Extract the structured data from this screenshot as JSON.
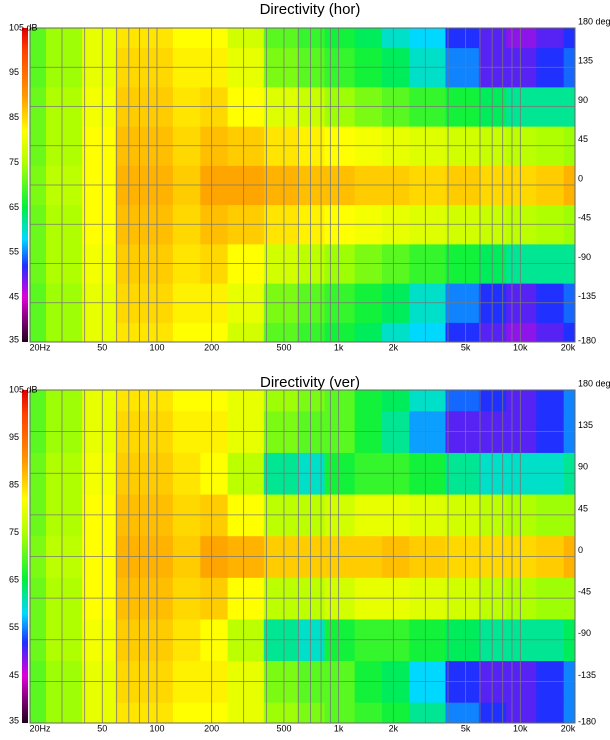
{
  "chart_data": [
    {
      "type": "heatmap",
      "title": "Directivity (hor)",
      "x": [
        20,
        30,
        50,
        70,
        100,
        150,
        200,
        300,
        500,
        700,
        1000,
        1500,
        2000,
        3000,
        5000,
        7000,
        10000,
        15000,
        20000
      ],
      "y": [
        -180,
        -135,
        -90,
        -45,
        0,
        45,
        90,
        135,
        180
      ],
      "z": [
        [
          70,
          74,
          80,
          84,
          84,
          82,
          82,
          78,
          70,
          68,
          66,
          64,
          60,
          58,
          52,
          50,
          48,
          50,
          52
        ],
        [
          70,
          74,
          80,
          85,
          85,
          83,
          83,
          80,
          72,
          70,
          68,
          66,
          64,
          60,
          55,
          52,
          50,
          52,
          54
        ],
        [
          71,
          75,
          81,
          86,
          86,
          84,
          85,
          82,
          78,
          76,
          74,
          72,
          70,
          68,
          66,
          64,
          62,
          62,
          62
        ],
        [
          71,
          75,
          82,
          87,
          87,
          85,
          87,
          86,
          84,
          83,
          82,
          81,
          80,
          79,
          78,
          77,
          76,
          75,
          74
        ],
        [
          72,
          76,
          82,
          88,
          88,
          86,
          89,
          89,
          88,
          87,
          87,
          86,
          86,
          85,
          86,
          85,
          85,
          86,
          88
        ],
        [
          71,
          75,
          82,
          87,
          87,
          85,
          87,
          86,
          84,
          83,
          82,
          81,
          80,
          79,
          78,
          77,
          76,
          75,
          74
        ],
        [
          71,
          75,
          81,
          86,
          86,
          84,
          85,
          82,
          79,
          77,
          74,
          72,
          70,
          68,
          66,
          64,
          62,
          62,
          62
        ],
        [
          70,
          74,
          80,
          85,
          85,
          83,
          83,
          80,
          72,
          70,
          68,
          66,
          64,
          60,
          55,
          50,
          50,
          52,
          54
        ],
        [
          70,
          74,
          80,
          84,
          84,
          82,
          82,
          78,
          70,
          68,
          66,
          64,
          60,
          58,
          52,
          50,
          48,
          50,
          52
        ]
      ],
      "xlim": [
        20,
        20000
      ],
      "log_x": true,
      "xticks": [
        {
          "value": 20,
          "label": "20Hz"
        },
        50,
        100,
        200,
        500,
        {
          "value": 1000,
          "label": "1k"
        },
        {
          "value": 2000,
          "label": "2k"
        },
        {
          "value": 5000,
          "label": "5k"
        },
        {
          "value": 10000,
          "label": "10k"
        },
        {
          "value": 20000,
          "label": "20k"
        }
      ],
      "xgrid": [
        30,
        40,
        60,
        70,
        80,
        90,
        300,
        400,
        600,
        700,
        800,
        900,
        3000,
        4000,
        6000,
        7000,
        8000,
        9000
      ],
      "ylim": [
        -180,
        180
      ],
      "yticks": [
        {
          "value": 180,
          "label": "180 deg"
        },
        135,
        90,
        45,
        0,
        -45,
        -90,
        -135,
        -180
      ],
      "clim": [
        35,
        105
      ],
      "cticks": [
        {
          "value": 105,
          "label": "105 dB"
        },
        95,
        85,
        75,
        65,
        55,
        45,
        35
      ],
      "colorscale": [
        [
          35,
          "#200018"
        ],
        [
          45,
          "#e000d8"
        ],
        [
          52,
          "#2030ff"
        ],
        [
          58,
          "#00d8ff"
        ],
        [
          65,
          "#00f040"
        ],
        [
          75,
          "#b0ff00"
        ],
        [
          82,
          "#ffff00"
        ],
        [
          90,
          "#ff9800"
        ],
        [
          100,
          "#ff4000"
        ],
        [
          105,
          "#e00000"
        ]
      ],
      "grid": true
    },
    {
      "type": "heatmap",
      "title": "Directivity (ver)",
      "x": [
        20,
        30,
        50,
        70,
        100,
        150,
        200,
        300,
        500,
        700,
        1000,
        1500,
        2000,
        3000,
        5000,
        7000,
        10000,
        15000,
        20000
      ],
      "y": [
        -180,
        -135,
        -90,
        -45,
        0,
        45,
        90,
        135,
        180
      ],
      "z": [
        [
          70,
          74,
          80,
          84,
          84,
          82,
          82,
          80,
          74,
          72,
          70,
          68,
          66,
          62,
          55,
          52,
          50,
          52,
          55
        ],
        [
          70,
          74,
          80,
          85,
          85,
          83,
          83,
          80,
          72,
          70,
          70,
          66,
          64,
          58,
          52,
          50,
          50,
          52,
          55
        ],
        [
          71,
          75,
          81,
          86,
          86,
          84,
          82,
          76,
          62,
          60,
          66,
          68,
          68,
          66,
          64,
          62,
          62,
          62,
          64
        ],
        [
          71,
          75,
          82,
          87,
          87,
          85,
          86,
          82,
          76,
          76,
          78,
          80,
          80,
          79,
          78,
          76,
          75,
          74,
          74
        ],
        [
          72,
          76,
          82,
          88,
          88,
          86,
          89,
          88,
          86,
          86,
          86,
          86,
          87,
          86,
          85,
          85,
          85,
          86,
          88
        ],
        [
          71,
          75,
          82,
          87,
          87,
          85,
          86,
          82,
          76,
          76,
          78,
          80,
          80,
          79,
          78,
          76,
          75,
          74,
          74
        ],
        [
          71,
          75,
          81,
          86,
          86,
          84,
          82,
          76,
          62,
          60,
          66,
          68,
          68,
          66,
          62,
          60,
          60,
          60,
          62
        ],
        [
          70,
          74,
          80,
          85,
          85,
          83,
          83,
          80,
          72,
          70,
          70,
          66,
          62,
          56,
          50,
          50,
          50,
          52,
          55
        ],
        [
          70,
          74,
          80,
          84,
          84,
          82,
          82,
          80,
          74,
          72,
          70,
          66,
          64,
          60,
          54,
          52,
          50,
          52,
          55
        ]
      ],
      "xlim": [
        20,
        20000
      ],
      "log_x": true,
      "xticks": [
        {
          "value": 20,
          "label": "20Hz"
        },
        50,
        100,
        200,
        500,
        {
          "value": 1000,
          "label": "1k"
        },
        {
          "value": 2000,
          "label": "2k"
        },
        {
          "value": 5000,
          "label": "5k"
        },
        {
          "value": 10000,
          "label": "10k"
        },
        {
          "value": 20000,
          "label": "20k"
        }
      ],
      "xgrid": [
        30,
        40,
        60,
        70,
        80,
        90,
        300,
        400,
        600,
        700,
        800,
        900,
        3000,
        4000,
        6000,
        7000,
        8000,
        9000
      ],
      "ylim": [
        -180,
        180
      ],
      "yticks": [
        {
          "value": 180,
          "label": "180 deg"
        },
        135,
        90,
        45,
        0,
        -45,
        -90,
        -135,
        -180
      ],
      "clim": [
        35,
        105
      ],
      "cticks": [
        {
          "value": 105,
          "label": "105 dB"
        },
        95,
        85,
        75,
        65,
        55,
        45,
        35
      ],
      "colorscale": [
        [
          35,
          "#200018"
        ],
        [
          45,
          "#e000d8"
        ],
        [
          52,
          "#2030ff"
        ],
        [
          58,
          "#00d8ff"
        ],
        [
          65,
          "#00f040"
        ],
        [
          75,
          "#b0ff00"
        ],
        [
          82,
          "#ffff00"
        ],
        [
          90,
          "#ff9800"
        ],
        [
          100,
          "#ff4000"
        ],
        [
          105,
          "#e00000"
        ]
      ],
      "grid": true
    }
  ]
}
